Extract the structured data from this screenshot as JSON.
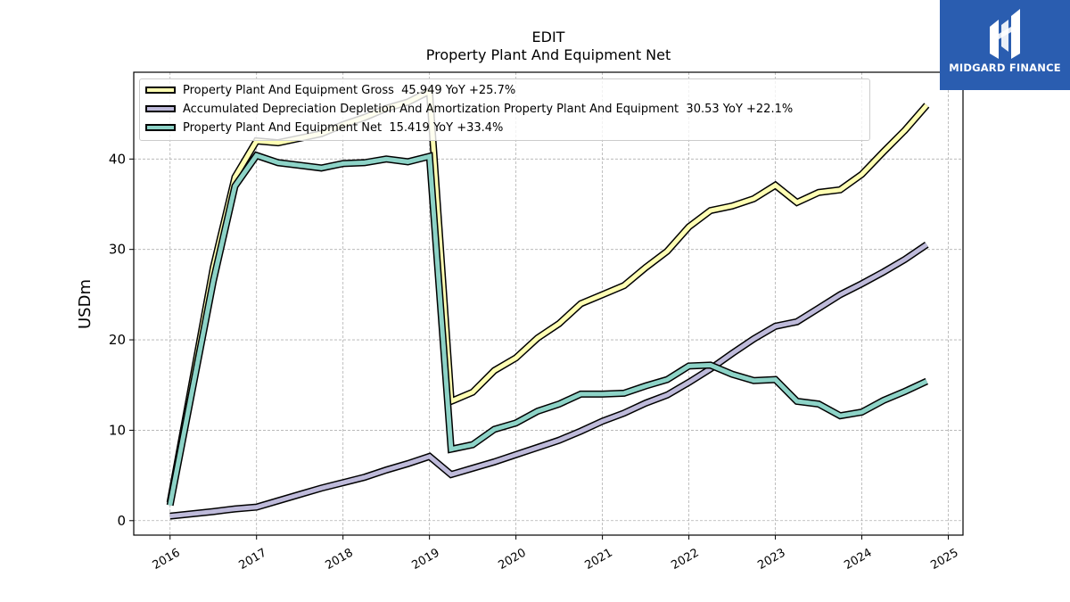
{
  "chart_data": {
    "type": "line",
    "title": "EDIT",
    "subtitle": "Property Plant And Equipment Net",
    "xlabel": "",
    "ylabel": "USDm",
    "xlim": [
      2015.58,
      2025.17
    ],
    "ylim": [
      -1.6,
      49.6
    ],
    "x_ticks": [
      "2016",
      "2017",
      "2018",
      "2019",
      "2020",
      "2021",
      "2022",
      "2023",
      "2024",
      "2025"
    ],
    "y_ticks": [
      "0",
      "10",
      "20",
      "30",
      "40"
    ],
    "grid": true,
    "legend_position": "top-left",
    "series": [
      {
        "name": "Property Plant And Equipment Gross",
        "legend_label": "Property Plant And Equipment Gross  45.949 YoY +25.7%",
        "color": "#ffffb3",
        "x": [
          2016.0,
          2016.5,
          2016.75,
          2017.0,
          2017.25,
          2017.5,
          2017.75,
          2018.0,
          2018.25,
          2018.5,
          2018.75,
          2019.0,
          2019.25,
          2019.5,
          2019.75,
          2020.0,
          2020.25,
          2020.5,
          2020.75,
          2021.0,
          2021.25,
          2021.5,
          2021.75,
          2022.0,
          2022.25,
          2022.5,
          2022.75,
          2023.0,
          2023.25,
          2023.5,
          2023.75,
          2024.0,
          2024.25,
          2024.5,
          2024.75
        ],
        "y": [
          2.0,
          28.0,
          38.0,
          42.0,
          41.8,
          42.3,
          42.8,
          43.8,
          44.6,
          45.6,
          46.3,
          47.5,
          13.2,
          14.2,
          16.6,
          18.0,
          20.2,
          21.8,
          24.0,
          25.0,
          26.0,
          28.0,
          29.8,
          32.5,
          34.3,
          34.8,
          35.6,
          37.1,
          35.2,
          36.3,
          36.6,
          38.3,
          40.8,
          43.2,
          45.949
        ]
      },
      {
        "name": "Accumulated Depreciation Depletion And Amortization Property Plant And Equipment",
        "legend_label": "Accumulated Depreciation Depletion And Amortization Property Plant And Equipment  30.53 YoY +22.1%",
        "color": "#bebada",
        "x": [
          2016.0,
          2016.5,
          2016.75,
          2017.0,
          2017.25,
          2017.5,
          2017.75,
          2018.0,
          2018.25,
          2018.5,
          2018.75,
          2019.0,
          2019.25,
          2019.5,
          2019.75,
          2020.0,
          2020.25,
          2020.5,
          2020.75,
          2021.0,
          2021.25,
          2021.5,
          2021.75,
          2022.0,
          2022.25,
          2022.5,
          2022.75,
          2023.0,
          2023.25,
          2023.5,
          2023.75,
          2024.0,
          2024.25,
          2024.5,
          2024.75
        ],
        "y": [
          0.5,
          1.0,
          1.3,
          1.5,
          2.2,
          2.9,
          3.6,
          4.2,
          4.8,
          5.6,
          6.3,
          7.1,
          5.1,
          5.8,
          6.5,
          7.3,
          8.1,
          8.9,
          9.9,
          11.0,
          11.9,
          13.0,
          13.9,
          15.3,
          16.8,
          18.5,
          20.1,
          21.5,
          22.0,
          23.5,
          25.0,
          26.2,
          27.5,
          28.9,
          30.53
        ]
      },
      {
        "name": "Property Plant And Equipment Net",
        "legend_label": "Property Plant And Equipment Net  15.419 YoY +33.4%",
        "color": "#8dd3c7",
        "x": [
          2016.0,
          2016.5,
          2016.75,
          2017.0,
          2017.25,
          2017.5,
          2017.75,
          2018.0,
          2018.25,
          2018.5,
          2018.75,
          2019.0,
          2019.25,
          2019.5,
          2019.75,
          2020.0,
          2020.25,
          2020.5,
          2020.75,
          2021.0,
          2021.25,
          2021.5,
          2021.75,
          2022.0,
          2022.25,
          2022.5,
          2022.75,
          2023.0,
          2023.25,
          2023.5,
          2023.75,
          2024.0,
          2024.25,
          2024.5,
          2024.75
        ],
        "y": [
          1.7,
          26.5,
          37.0,
          40.4,
          39.6,
          39.3,
          39.0,
          39.5,
          39.6,
          40.0,
          39.7,
          40.3,
          7.9,
          8.4,
          10.1,
          10.8,
          12.1,
          12.9,
          14.0,
          14.0,
          14.1,
          14.9,
          15.6,
          17.1,
          17.2,
          16.2,
          15.5,
          15.6,
          13.2,
          12.9,
          11.6,
          12.0,
          13.3,
          14.3,
          15.419
        ]
      }
    ]
  },
  "logo": {
    "text": "MIDGARD FINANCE",
    "color": "#2a5db0"
  }
}
